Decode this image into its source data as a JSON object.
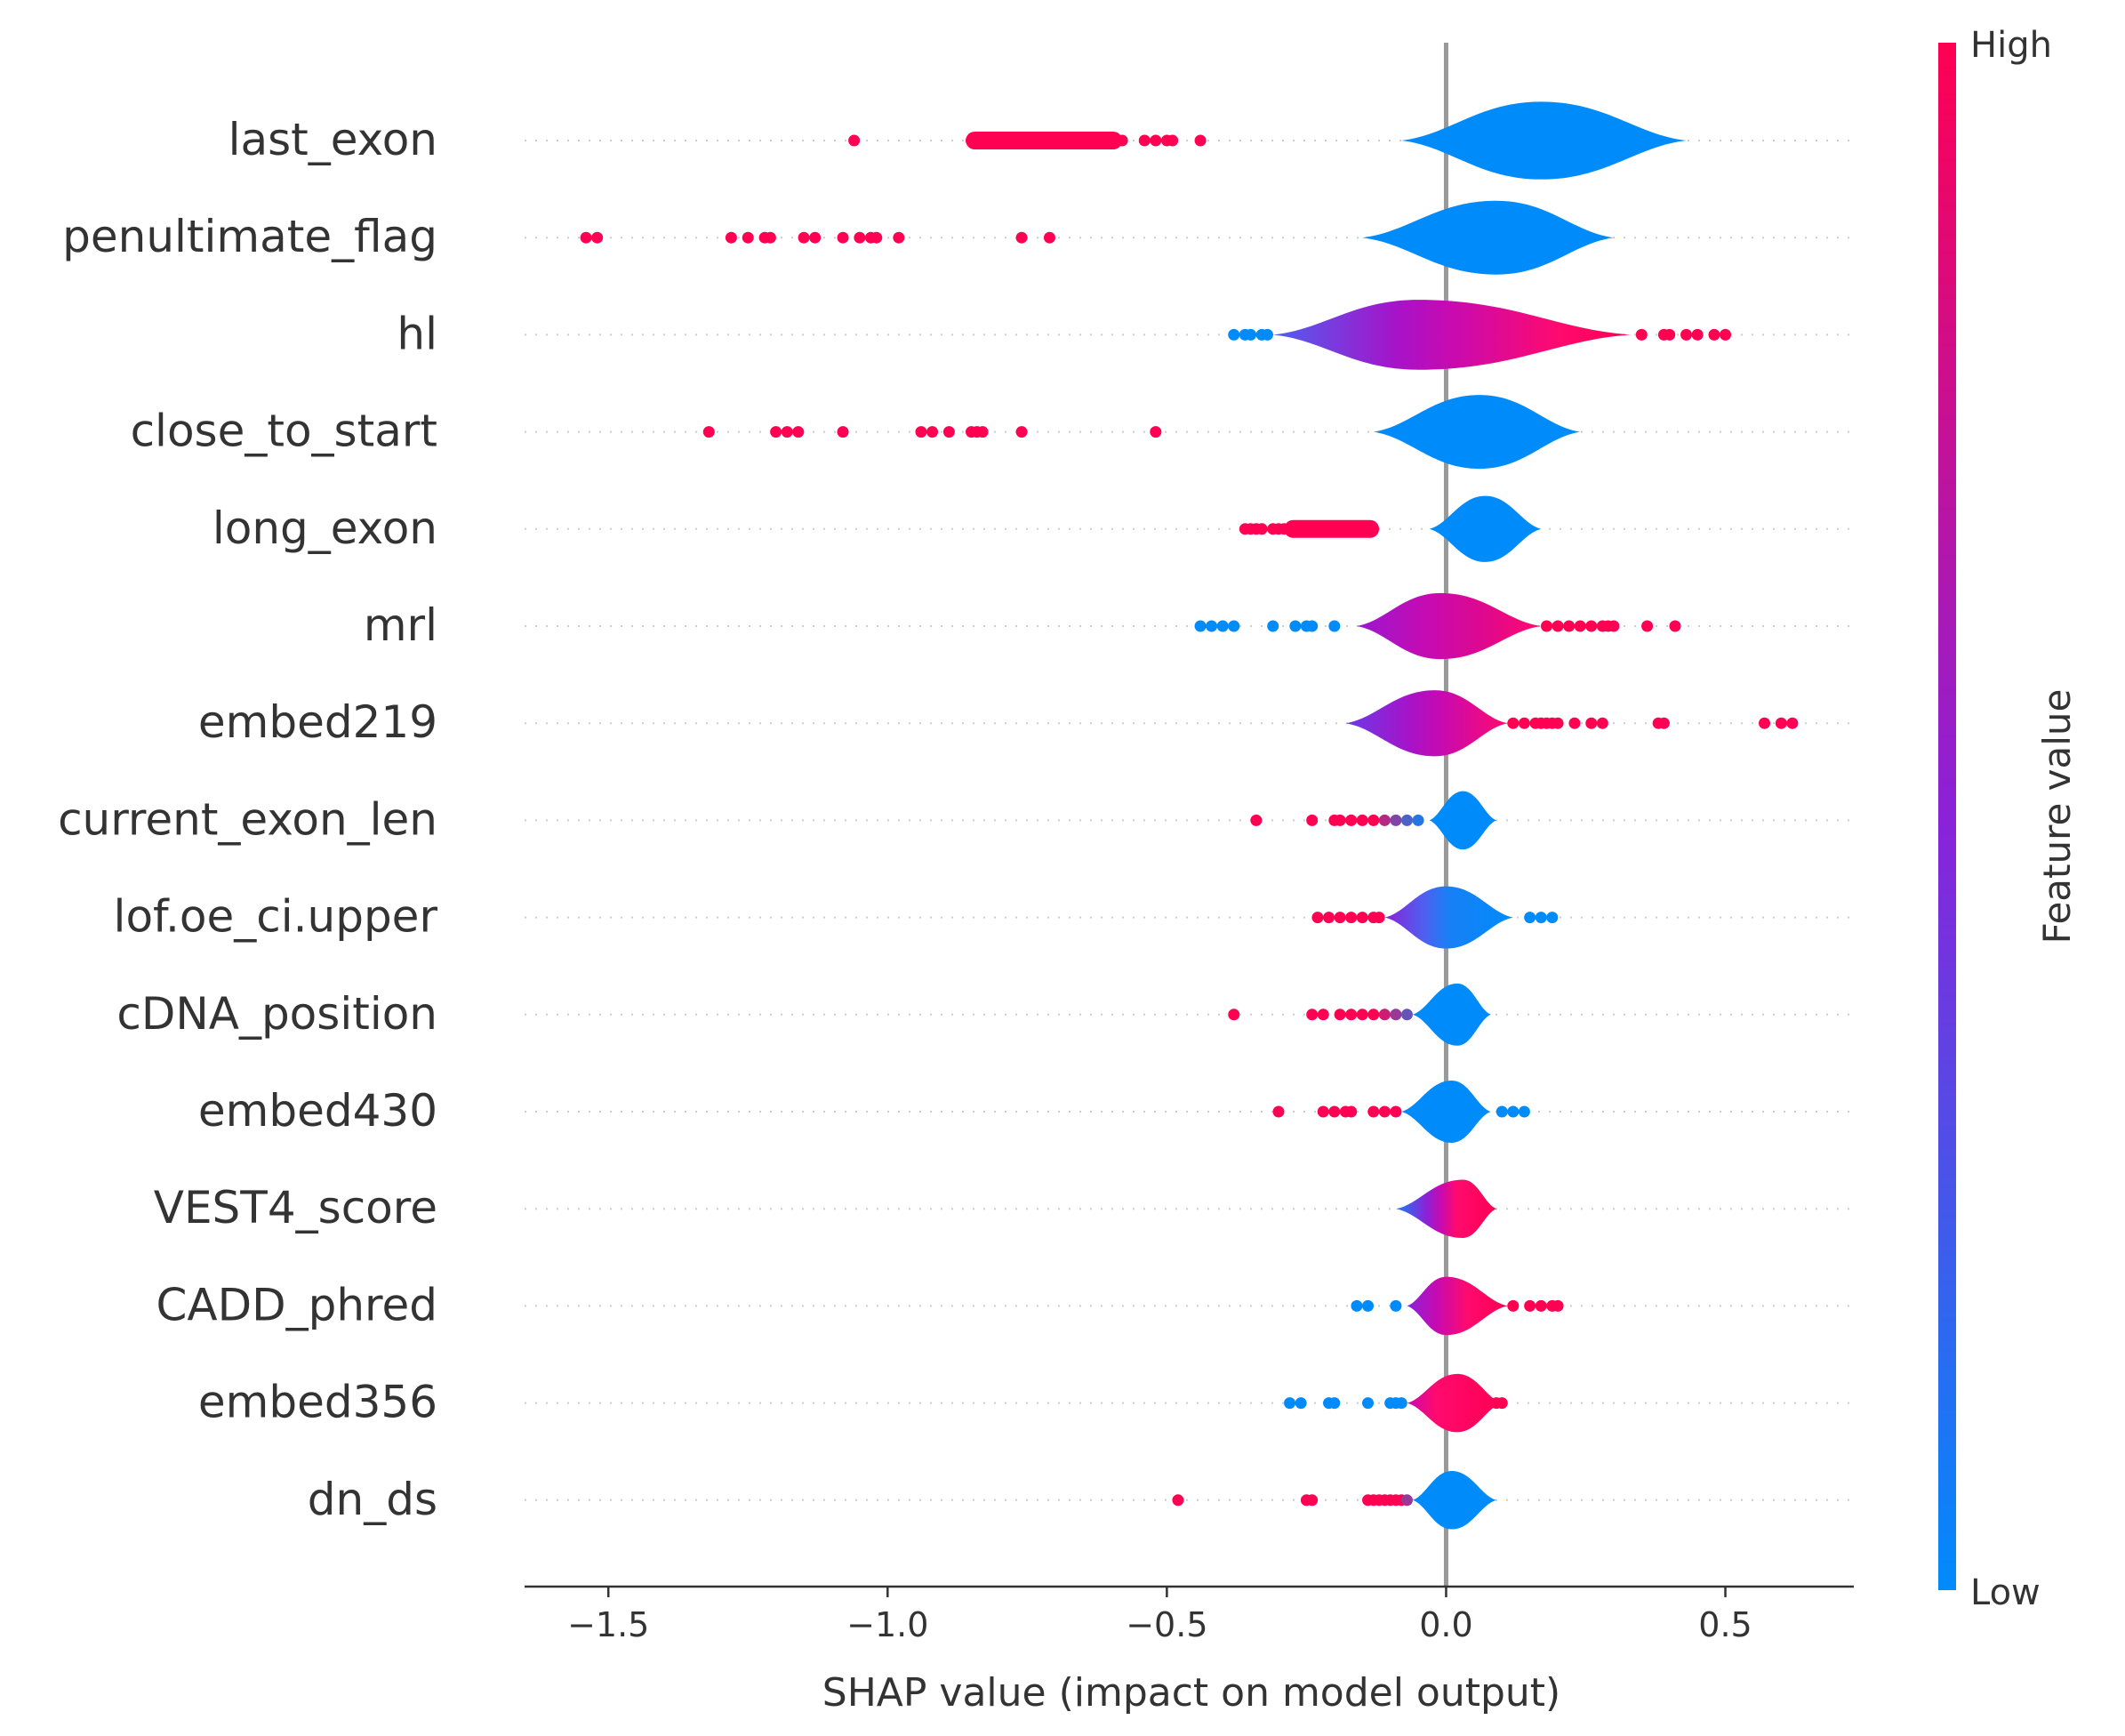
{
  "chart_data": {
    "type": "shap-violin-summary",
    "xlabel": "SHAP value (impact on model output)",
    "x_ticks": [
      -1.5,
      -1.0,
      -0.5,
      0.0,
      0.5
    ],
    "x_tick_labels": [
      "−1.5",
      "−1.0",
      "−0.5",
      "0.0",
      "0.5"
    ],
    "xlim": [
      -1.65,
      0.73
    ],
    "colorbar": {
      "label": "Feature value",
      "high_label": "High",
      "low_label": "Low",
      "high_color": "#ff0052",
      "low_color": "#008bfb"
    },
    "features": [
      {
        "name": "last_exon",
        "violin": {
          "min": -0.08,
          "max": 0.43,
          "peak": 0.17,
          "half_height": 0.4,
          "color_low": "#008bfb",
          "color_high": "#008bfb"
        },
        "outliers": [
          {
            "x": -1.06,
            "v": 1
          },
          {
            "x": -0.85,
            "v": 1
          },
          {
            "x": -0.8,
            "v": 1
          },
          {
            "x": -0.75,
            "v": 1
          },
          {
            "x": -0.7,
            "v": 1
          },
          {
            "x": -0.65,
            "v": 1
          },
          {
            "x": -0.6,
            "v": 1
          },
          {
            "x": -0.58,
            "v": 1
          },
          {
            "x": -0.54,
            "v": 1
          },
          {
            "x": -0.52,
            "v": 1
          },
          {
            "x": -0.5,
            "v": 1
          },
          {
            "x": -0.49,
            "v": 1
          },
          {
            "x": -0.44,
            "v": 1
          }
        ],
        "dense": {
          "from": -0.86,
          "to": -0.58,
          "v": 1
        }
      },
      {
        "name": "penultimate_flag",
        "violin": {
          "min": -0.15,
          "max": 0.3,
          "peak": 0.09,
          "half_height": 0.38,
          "color_low": "#008bfb",
          "color_high": "#008bfb"
        },
        "outliers": [
          {
            "x": -1.54,
            "v": 1
          },
          {
            "x": -1.52,
            "v": 1
          },
          {
            "x": -1.28,
            "v": 1
          },
          {
            "x": -1.25,
            "v": 1
          },
          {
            "x": -1.22,
            "v": 1
          },
          {
            "x": -1.21,
            "v": 1
          },
          {
            "x": -1.15,
            "v": 1
          },
          {
            "x": -1.13,
            "v": 1
          },
          {
            "x": -1.08,
            "v": 1
          },
          {
            "x": -1.05,
            "v": 1
          },
          {
            "x": -1.03,
            "v": 1
          },
          {
            "x": -1.02,
            "v": 1
          },
          {
            "x": -0.98,
            "v": 1
          },
          {
            "x": -0.76,
            "v": 1
          },
          {
            "x": -0.71,
            "v": 1
          }
        ]
      },
      {
        "name": "hl",
        "violin": {
          "min": -0.31,
          "max": 0.33,
          "peak": -0.05,
          "half_height": 0.36,
          "color_low": "#7a2ce0",
          "color_high": "#ff0052",
          "gradient": [
            [
              "#4f5ff0",
              0
            ],
            [
              "#a812c8",
              0.35
            ],
            [
              "#c80ab0",
              0.5
            ],
            [
              "#ff0a6e",
              0.8
            ],
            [
              "#ff0052",
              1
            ]
          ]
        },
        "outliers": [
          {
            "x": -0.38,
            "v": 0
          },
          {
            "x": -0.36,
            "v": 0
          },
          {
            "x": -0.35,
            "v": 0
          },
          {
            "x": -0.33,
            "v": 0
          },
          {
            "x": -0.32,
            "v": 0
          },
          {
            "x": 0.35,
            "v": 1
          },
          {
            "x": 0.39,
            "v": 1
          },
          {
            "x": 0.4,
            "v": 1
          },
          {
            "x": 0.43,
            "v": 1
          },
          {
            "x": 0.45,
            "v": 1
          },
          {
            "x": 0.48,
            "v": 1
          },
          {
            "x": 0.5,
            "v": 1
          }
        ]
      },
      {
        "name": "close_to_start",
        "violin": {
          "min": -0.13,
          "max": 0.24,
          "peak": 0.06,
          "half_height": 0.38,
          "color_low": "#008bfb",
          "color_high": "#008bfb"
        },
        "outliers": [
          {
            "x": -1.32,
            "v": 1
          },
          {
            "x": -1.2,
            "v": 1
          },
          {
            "x": -1.18,
            "v": 1
          },
          {
            "x": -1.16,
            "v": 1
          },
          {
            "x": -1.08,
            "v": 1
          },
          {
            "x": -0.94,
            "v": 1
          },
          {
            "x": -0.92,
            "v": 1
          },
          {
            "x": -0.89,
            "v": 1
          },
          {
            "x": -0.85,
            "v": 1
          },
          {
            "x": -0.84,
            "v": 1
          },
          {
            "x": -0.83,
            "v": 1
          },
          {
            "x": -0.76,
            "v": 1
          },
          {
            "x": -0.52,
            "v": 1
          }
        ]
      },
      {
        "name": "long_exon",
        "violin": {
          "min": -0.03,
          "max": 0.17,
          "peak": 0.07,
          "half_height": 0.34,
          "color_low": "#008bfb",
          "color_high": "#008bfb"
        },
        "outliers": [
          {
            "x": -0.36,
            "v": 1
          },
          {
            "x": -0.35,
            "v": 1
          },
          {
            "x": -0.34,
            "v": 1
          },
          {
            "x": -0.33,
            "v": 1
          },
          {
            "x": -0.31,
            "v": 1
          },
          {
            "x": -0.3,
            "v": 1
          },
          {
            "x": -0.29,
            "v": 1
          }
        ],
        "dense": {
          "from": -0.29,
          "to": -0.12,
          "v": 1
        }
      },
      {
        "name": "mrl",
        "violin": {
          "min": -0.16,
          "max": 0.17,
          "peak": -0.01,
          "half_height": 0.34,
          "color_low": "#b010c0",
          "color_high": "#ff0a6e",
          "gradient": [
            [
              "#9a18d0",
              0
            ],
            [
              "#c80ab0",
              0.4
            ],
            [
              "#e0088c",
              0.7
            ],
            [
              "#ff0a6e",
              1
            ]
          ]
        },
        "outliers": [
          {
            "x": -0.44,
            "v": 0
          },
          {
            "x": -0.42,
            "v": 0
          },
          {
            "x": -0.4,
            "v": 0
          },
          {
            "x": -0.38,
            "v": 0
          },
          {
            "x": -0.31,
            "v": 0
          },
          {
            "x": -0.27,
            "v": 0
          },
          {
            "x": -0.25,
            "v": 0
          },
          {
            "x": -0.24,
            "v": 0
          },
          {
            "x": -0.2,
            "v": 0
          },
          {
            "x": 0.18,
            "v": 1
          },
          {
            "x": 0.2,
            "v": 1
          },
          {
            "x": 0.22,
            "v": 1
          },
          {
            "x": 0.24,
            "v": 1
          },
          {
            "x": 0.26,
            "v": 1
          },
          {
            "x": 0.28,
            "v": 1
          },
          {
            "x": 0.29,
            "v": 1
          },
          {
            "x": 0.3,
            "v": 1
          },
          {
            "x": 0.36,
            "v": 1
          },
          {
            "x": 0.41,
            "v": 1
          }
        ]
      },
      {
        "name": "embed219",
        "violin": {
          "min": -0.18,
          "max": 0.11,
          "peak": -0.02,
          "half_height": 0.34,
          "color_low": "#7a2ce0",
          "color_high": "#ff0a6e",
          "gradient": [
            [
              "#6a3ae8",
              0
            ],
            [
              "#a812c8",
              0.4
            ],
            [
              "#c80ab0",
              0.6
            ],
            [
              "#ff0a6e",
              1
            ]
          ]
        },
        "outliers": [
          {
            "x": 0.12,
            "v": 1
          },
          {
            "x": 0.14,
            "v": 1
          },
          {
            "x": 0.16,
            "v": 1
          },
          {
            "x": 0.17,
            "v": 1
          },
          {
            "x": 0.18,
            "v": 1
          },
          {
            "x": 0.19,
            "v": 1
          },
          {
            "x": 0.2,
            "v": 1
          },
          {
            "x": 0.23,
            "v": 1
          },
          {
            "x": 0.26,
            "v": 1
          },
          {
            "x": 0.28,
            "v": 1
          },
          {
            "x": 0.38,
            "v": 1
          },
          {
            "x": 0.39,
            "v": 1
          },
          {
            "x": 0.57,
            "v": 1
          },
          {
            "x": 0.6,
            "v": 1
          },
          {
            "x": 0.62,
            "v": 1
          }
        ]
      },
      {
        "name": "current_exon_len",
        "violin": {
          "min": -0.03,
          "max": 0.09,
          "peak": 0.03,
          "half_height": 0.3,
          "color_low": "#008bfb",
          "color_high": "#008bfb"
        },
        "outliers": [
          {
            "x": -0.34,
            "v": 1
          },
          {
            "x": -0.24,
            "v": 1
          },
          {
            "x": -0.2,
            "v": 1
          },
          {
            "x": -0.19,
            "v": 1
          },
          {
            "x": -0.17,
            "v": 1
          },
          {
            "x": -0.15,
            "v": 1
          },
          {
            "x": -0.13,
            "v": 1
          },
          {
            "x": -0.11,
            "v": 0.7
          },
          {
            "x": -0.09,
            "v": 0.5
          },
          {
            "x": -0.07,
            "v": 0.3
          },
          {
            "x": -0.05,
            "v": 0.15
          }
        ]
      },
      {
        "name": "lof.oe_ci.upper",
        "violin": {
          "min": -0.11,
          "max": 0.12,
          "peak": 0.0,
          "half_height": 0.32,
          "color_low": "#7a2ce0",
          "color_high": "#008bfb",
          "gradient": [
            [
              "#8a22d8",
              0
            ],
            [
              "#4f5ff0",
              0.3
            ],
            [
              "#1880f5",
              0.5
            ],
            [
              "#008bfb",
              1
            ]
          ]
        },
        "outliers": [
          {
            "x": -0.23,
            "v": 1
          },
          {
            "x": -0.21,
            "v": 1
          },
          {
            "x": -0.19,
            "v": 1
          },
          {
            "x": -0.17,
            "v": 1
          },
          {
            "x": -0.15,
            "v": 1
          },
          {
            "x": -0.13,
            "v": 1
          },
          {
            "x": -0.12,
            "v": 1
          },
          {
            "x": 0.15,
            "v": 0
          },
          {
            "x": 0.17,
            "v": 0
          },
          {
            "x": 0.19,
            "v": 0
          }
        ]
      },
      {
        "name": "cDNA_position",
        "violin": {
          "min": -0.06,
          "max": 0.08,
          "peak": 0.02,
          "half_height": 0.32,
          "color_low": "#008bfb",
          "color_high": "#008bfb"
        },
        "outliers": [
          {
            "x": -0.38,
            "v": 1
          },
          {
            "x": -0.24,
            "v": 1
          },
          {
            "x": -0.22,
            "v": 1
          },
          {
            "x": -0.19,
            "v": 1
          },
          {
            "x": -0.17,
            "v": 1
          },
          {
            "x": -0.15,
            "v": 1
          },
          {
            "x": -0.13,
            "v": 1
          },
          {
            "x": -0.11,
            "v": 0.8
          },
          {
            "x": -0.09,
            "v": 0.6
          },
          {
            "x": -0.07,
            "v": 0.4
          }
        ]
      },
      {
        "name": "embed430",
        "violin": {
          "min": -0.08,
          "max": 0.08,
          "peak": 0.01,
          "half_height": 0.32,
          "color_low": "#008bfb",
          "color_high": "#008bfb"
        },
        "outliers": [
          {
            "x": -0.3,
            "v": 1
          },
          {
            "x": -0.22,
            "v": 1
          },
          {
            "x": -0.2,
            "v": 1
          },
          {
            "x": -0.18,
            "v": 1
          },
          {
            "x": -0.17,
            "v": 1
          },
          {
            "x": -0.13,
            "v": 1
          },
          {
            "x": -0.11,
            "v": 1
          },
          {
            "x": -0.09,
            "v": 1
          },
          {
            "x": 0.1,
            "v": 0
          },
          {
            "x": 0.12,
            "v": 0
          },
          {
            "x": 0.14,
            "v": 0
          }
        ]
      },
      {
        "name": "VEST4_score",
        "violin": {
          "min": -0.09,
          "max": 0.09,
          "peak": 0.03,
          "half_height": 0.3,
          "color_low": "#008bfb",
          "color_high": "#ff0a6e",
          "gradient": [
            [
              "#1880f5",
              0
            ],
            [
              "#8a22d8",
              0.3
            ],
            [
              "#c80ab0",
              0.45
            ],
            [
              "#ff0a6e",
              0.6
            ],
            [
              "#ff0052",
              1
            ]
          ]
        },
        "outliers": []
      },
      {
        "name": "CADD_phred",
        "violin": {
          "min": -0.07,
          "max": 0.11,
          "peak": 0.0,
          "half_height": 0.3,
          "color_low": "#c80ab0",
          "color_high": "#ff0052",
          "gradient": [
            [
              "#8a22d8",
              0
            ],
            [
              "#c80ab0",
              0.3
            ],
            [
              "#ff0a6e",
              0.6
            ],
            [
              "#ff0052",
              1
            ]
          ]
        },
        "outliers": [
          {
            "x": -0.16,
            "v": 0
          },
          {
            "x": -0.14,
            "v": 0
          },
          {
            "x": -0.09,
            "v": 0
          },
          {
            "x": 0.12,
            "v": 1
          },
          {
            "x": 0.15,
            "v": 1
          },
          {
            "x": 0.17,
            "v": 1
          },
          {
            "x": 0.19,
            "v": 1
          },
          {
            "x": 0.2,
            "v": 1
          }
        ]
      },
      {
        "name": "embed356",
        "violin": {
          "min": -0.07,
          "max": 0.1,
          "peak": 0.02,
          "half_height": 0.3,
          "color_low": "#ff0052",
          "color_high": "#ff0052",
          "gradient": [
            [
              "#c80ab0",
              0
            ],
            [
              "#ff0a6e",
              0.3
            ],
            [
              "#ff0052",
              1
            ]
          ]
        },
        "outliers": [
          {
            "x": -0.28,
            "v": 0
          },
          {
            "x": -0.26,
            "v": 0
          },
          {
            "x": -0.21,
            "v": 0
          },
          {
            "x": -0.2,
            "v": 0
          },
          {
            "x": -0.14,
            "v": 0
          },
          {
            "x": -0.1,
            "v": 0
          },
          {
            "x": -0.09,
            "v": 0
          },
          {
            "x": -0.08,
            "v": 0
          },
          {
            "x": 0.09,
            "v": 1
          },
          {
            "x": 0.1,
            "v": 1
          }
        ]
      },
      {
        "name": "dn_ds",
        "violin": {
          "min": -0.06,
          "max": 0.09,
          "peak": 0.01,
          "half_height": 0.3,
          "color_low": "#008bfb",
          "color_high": "#008bfb"
        },
        "outliers": [
          {
            "x": -0.48,
            "v": 1
          },
          {
            "x": -0.25,
            "v": 1
          },
          {
            "x": -0.24,
            "v": 1
          },
          {
            "x": -0.14,
            "v": 1
          },
          {
            "x": -0.13,
            "v": 1
          },
          {
            "x": -0.12,
            "v": 1
          },
          {
            "x": -0.11,
            "v": 1
          },
          {
            "x": -0.1,
            "v": 1
          },
          {
            "x": -0.09,
            "v": 1
          },
          {
            "x": -0.08,
            "v": 1
          },
          {
            "x": -0.07,
            "v": 0.6
          }
        ]
      }
    ]
  }
}
